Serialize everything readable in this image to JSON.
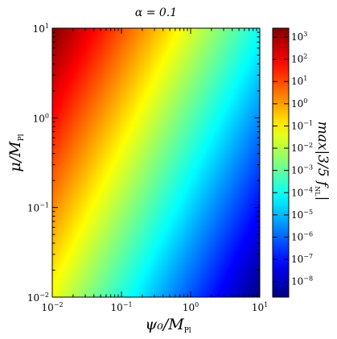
{
  "chart_data": {
    "type": "heatmap",
    "title": "α = 0.1",
    "xlabel": "ψ₀/M",
    "xlabel_sub": "Pl",
    "ylabel": "μ/M",
    "ylabel_sub": "Pl",
    "xscale": "log",
    "yscale": "log",
    "xlim": [
      0.01,
      10
    ],
    "ylim": [
      0.01,
      10
    ],
    "x_ticks": [
      {
        "value": 0.01,
        "base": "10",
        "exp": "−2"
      },
      {
        "value": 0.1,
        "base": "10",
        "exp": "−1"
      },
      {
        "value": 1,
        "base": "10",
        "exp": "0"
      },
      {
        "value": 10,
        "base": "10",
        "exp": "1"
      }
    ],
    "y_ticks": [
      {
        "value": 0.01,
        "base": "10",
        "exp": "−2"
      },
      {
        "value": 0.1,
        "base": "10",
        "exp": "−1"
      },
      {
        "value": 1,
        "base": "10",
        "exp": "0"
      },
      {
        "value": 10,
        "base": "10",
        "exp": "1"
      }
    ],
    "colorbar": {
      "label": "max|3/5 f",
      "label_sub": "NL",
      "label_tail": "|",
      "scale": "log",
      "colormap": "jet",
      "range_exp": [
        -8.7,
        3.4
      ],
      "ticks": [
        {
          "value_exp": 3,
          "base": "10",
          "exp": "3"
        },
        {
          "value_exp": 2,
          "base": "10",
          "exp": "2"
        },
        {
          "value_exp": 1,
          "base": "10",
          "exp": "1"
        },
        {
          "value_exp": 0,
          "base": "10",
          "exp": "0"
        },
        {
          "value_exp": -1,
          "base": "10",
          "exp": "−1"
        },
        {
          "value_exp": -2,
          "base": "10",
          "exp": "−2"
        },
        {
          "value_exp": -3,
          "base": "10",
          "exp": "−3"
        },
        {
          "value_exp": -4,
          "base": "10",
          "exp": "−4"
        },
        {
          "value_exp": -5,
          "base": "10",
          "exp": "−5"
        },
        {
          "value_exp": -6,
          "base": "10",
          "exp": "−6"
        },
        {
          "value_exp": -7,
          "base": "10",
          "exp": "−7"
        },
        {
          "value_exp": -8,
          "base": "10",
          "exp": "−8"
        }
      ]
    },
    "field": {
      "description_exp_at_corners": {
        "x_min_y_max": 3.4,
        "x_max_y_min": -8.7,
        "x_min_y_min": -1.3,
        "x_max_y_max": -4.0
      }
    }
  }
}
